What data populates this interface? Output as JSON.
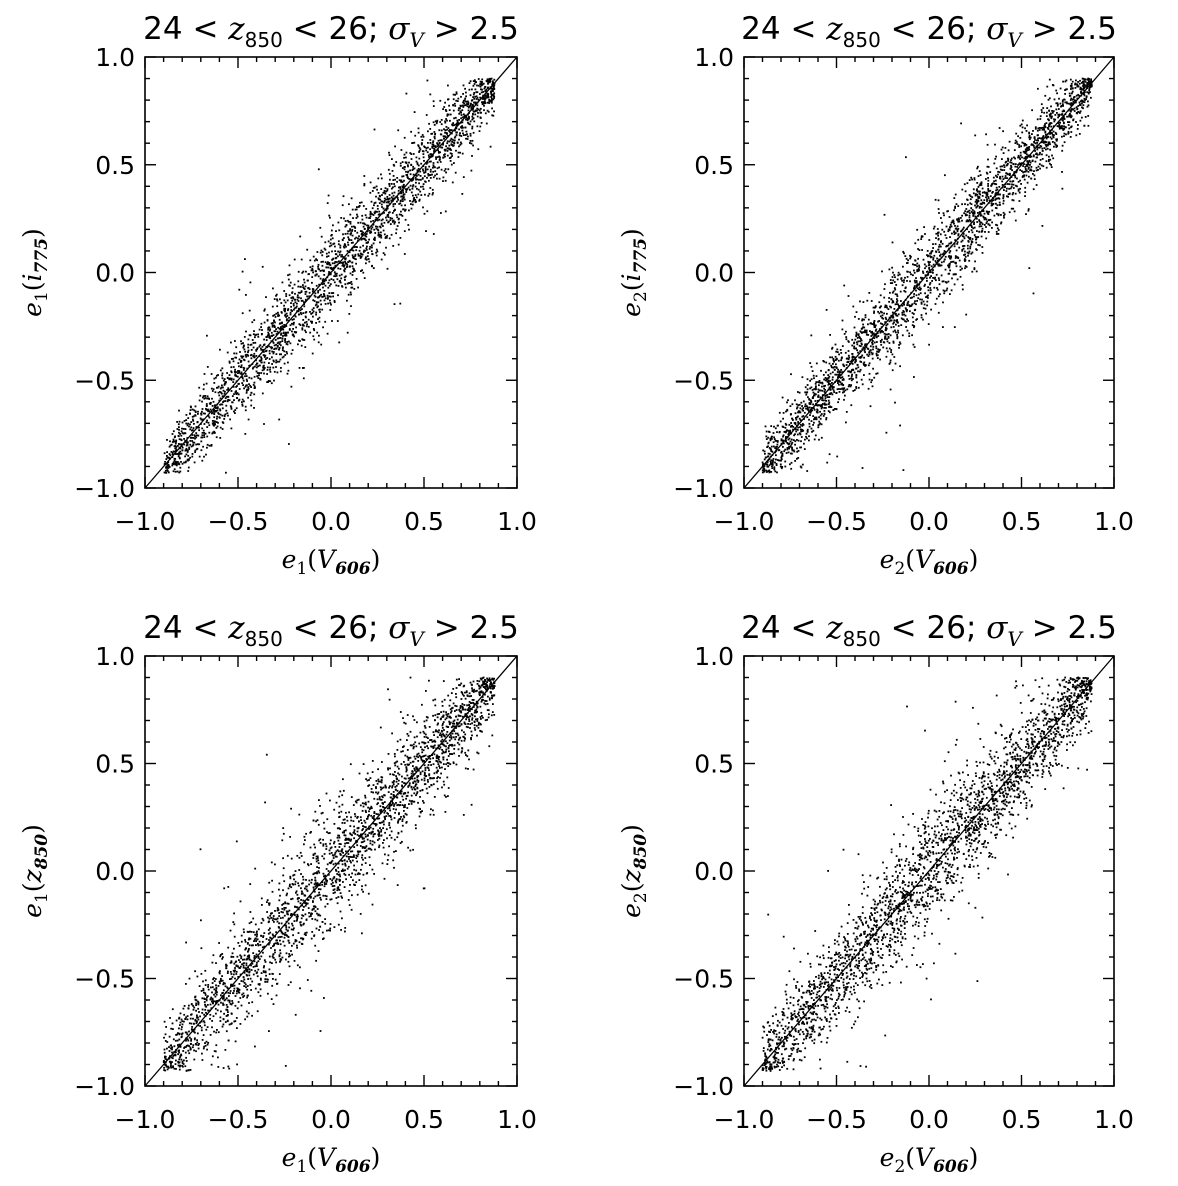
{
  "chart_data": [
    {
      "type": "scatter",
      "title": "24 < z850 < 26; σV > 2.5",
      "title_parts": {
        "prefix": "24 < ",
        "var": "z",
        "var_sub": "850",
        "mid": " < 26; ",
        "sigma": "σ",
        "sigma_sub": "V",
        "suffix": " > 2.5"
      },
      "xlabel": "e1(V606)",
      "xlabel_parts": {
        "sym": "e",
        "sub": "1",
        "band": "V",
        "band_sub": "606"
      },
      "ylabel": "e1(i775)",
      "ylabel_parts": {
        "sym": "e",
        "sub": "1",
        "band": "i",
        "band_sub": "775"
      },
      "xlim": [
        -1.0,
        1.0
      ],
      "ylim": [
        -1.0,
        1.0
      ],
      "xticks": [
        "−1.0",
        "−0.5",
        "0.0",
        "0.5",
        "1.0"
      ],
      "yticks": [
        "−1.0",
        "−0.5",
        "0.0",
        "0.5",
        "1.0"
      ],
      "reference_line": {
        "x": [
          -1.0,
          1.0
        ],
        "y": [
          -1.0,
          1.0
        ]
      },
      "scatter": {
        "n_points": 2600,
        "x_range": [
          -0.9,
          0.88
        ],
        "relation": "y ≈ x",
        "scatter_sigma": 0.11
      }
    },
    {
      "type": "scatter",
      "title": "24 < z850 < 26; σV > 2.5",
      "title_parts": {
        "prefix": "24 < ",
        "var": "z",
        "var_sub": "850",
        "mid": " < 26; ",
        "sigma": "σ",
        "sigma_sub": "V",
        "suffix": " > 2.5"
      },
      "xlabel": "e2(V606)",
      "xlabel_parts": {
        "sym": "e",
        "sub": "2",
        "band": "V",
        "band_sub": "606"
      },
      "ylabel": "e2(i775)",
      "ylabel_parts": {
        "sym": "e",
        "sub": "2",
        "band": "i",
        "band_sub": "775"
      },
      "xlim": [
        -1.0,
        1.0
      ],
      "ylim": [
        -1.0,
        1.0
      ],
      "xticks": [
        "−1.0",
        "−0.5",
        "0.0",
        "0.5",
        "1.0"
      ],
      "yticks": [
        "−1.0",
        "−0.5",
        "0.0",
        "0.5",
        "1.0"
      ],
      "reference_line": {
        "x": [
          -1.0,
          1.0
        ],
        "y": [
          -1.0,
          1.0
        ]
      },
      "scatter": {
        "n_points": 2600,
        "x_range": [
          -0.9,
          0.88
        ],
        "relation": "y ≈ x",
        "scatter_sigma": 0.11
      }
    },
    {
      "type": "scatter",
      "title": "24 < z850 < 26; σV > 2.5",
      "title_parts": {
        "prefix": "24 < ",
        "var": "z",
        "var_sub": "850",
        "mid": " < 26; ",
        "sigma": "σ",
        "sigma_sub": "V",
        "suffix": " > 2.5"
      },
      "xlabel": "e1(V606)",
      "xlabel_parts": {
        "sym": "e",
        "sub": "1",
        "band": "V",
        "band_sub": "606"
      },
      "ylabel": "e1(z850)",
      "ylabel_parts": {
        "sym": "e",
        "sub": "1",
        "band": "z",
        "band_sub": "850"
      },
      "xlim": [
        -1.0,
        1.0
      ],
      "ylim": [
        -1.0,
        1.0
      ],
      "xticks": [
        "−1.0",
        "−0.5",
        "0.0",
        "0.5",
        "1.0"
      ],
      "yticks": [
        "−1.0",
        "−0.5",
        "0.0",
        "0.5",
        "1.0"
      ],
      "reference_line": {
        "x": [
          -1.0,
          1.0
        ],
        "y": [
          -1.0,
          1.0
        ]
      },
      "scatter": {
        "n_points": 2600,
        "x_range": [
          -0.9,
          0.88
        ],
        "relation": "y ≈ x",
        "scatter_sigma": 0.14
      }
    },
    {
      "type": "scatter",
      "title": "24 < z850 < 26; σV > 2.5",
      "title_parts": {
        "prefix": "24 < ",
        "var": "z",
        "var_sub": "850",
        "mid": " < 26; ",
        "sigma": "σ",
        "sigma_sub": "V",
        "suffix": " > 2.5"
      },
      "xlabel": "e2(V606)",
      "xlabel_parts": {
        "sym": "e",
        "sub": "2",
        "band": "V",
        "band_sub": "606"
      },
      "ylabel": "e2(z850)",
      "ylabel_parts": {
        "sym": "e",
        "sub": "2",
        "band": "z",
        "band_sub": "850"
      },
      "xlim": [
        -1.0,
        1.0
      ],
      "ylim": [
        -1.0,
        1.0
      ],
      "xticks": [
        "−1.0",
        "−0.5",
        "0.0",
        "0.5",
        "1.0"
      ],
      "yticks": [
        "−1.0",
        "−0.5",
        "0.0",
        "0.5",
        "1.0"
      ],
      "reference_line": {
        "x": [
          -1.0,
          1.0
        ],
        "y": [
          -1.0,
          1.0
        ]
      },
      "scatter": {
        "n_points": 2600,
        "x_range": [
          -0.9,
          0.88
        ],
        "relation": "y ≈ x",
        "scatter_sigma": 0.14
      }
    }
  ]
}
